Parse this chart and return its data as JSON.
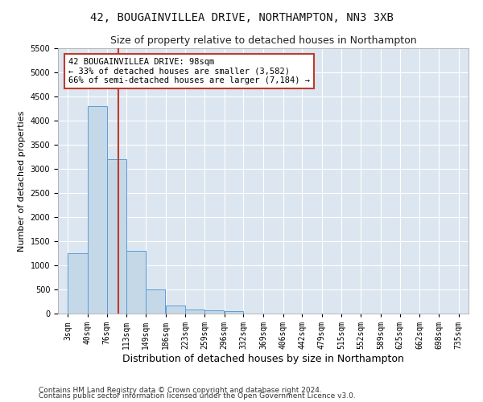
{
  "title": "42, BOUGAINVILLEA DRIVE, NORTHAMPTON, NN3 3XB",
  "subtitle": "Size of property relative to detached houses in Northampton",
  "xlabel": "Distribution of detached houses by size in Northampton",
  "ylabel": "Number of detached properties",
  "footnote1": "Contains HM Land Registry data © Crown copyright and database right 2024.",
  "footnote2": "Contains public sector information licensed under the Open Government Licence v3.0.",
  "property_label": "42 BOUGAINVILLEA DRIVE: 98sqm",
  "annotation_line1": "← 33% of detached houses are smaller (3,582)",
  "annotation_line2": "66% of semi-detached houses are larger (7,184) →",
  "bin_edges": [
    3,
    40,
    76,
    113,
    149,
    186,
    223,
    259,
    296,
    332,
    369,
    406,
    442,
    479,
    515,
    552,
    589,
    625,
    662,
    698,
    735
  ],
  "bar_heights": [
    1250,
    4300,
    3200,
    1300,
    500,
    175,
    90,
    60,
    50,
    0,
    0,
    0,
    0,
    0,
    0,
    0,
    0,
    0,
    0,
    0
  ],
  "bar_color": "#c5d8e8",
  "bar_edgecolor": "#5b9bd5",
  "vline_x": 98,
  "vline_color": "#c0392b",
  "vline_linewidth": 1.5,
  "annotation_box_color": "#c0392b",
  "ylim": [
    0,
    5500
  ],
  "yticks": [
    0,
    500,
    1000,
    1500,
    2000,
    2500,
    3000,
    3500,
    4000,
    4500,
    5000,
    5500
  ],
  "background_color": "#ffffff",
  "plot_bg_color": "#dce6f0",
  "grid_color": "#ffffff",
  "title_fontsize": 10,
  "subtitle_fontsize": 9,
  "xlabel_fontsize": 9,
  "ylabel_fontsize": 8,
  "tick_fontsize": 7,
  "annotation_fontsize": 7.5,
  "footnote_fontsize": 6.5
}
